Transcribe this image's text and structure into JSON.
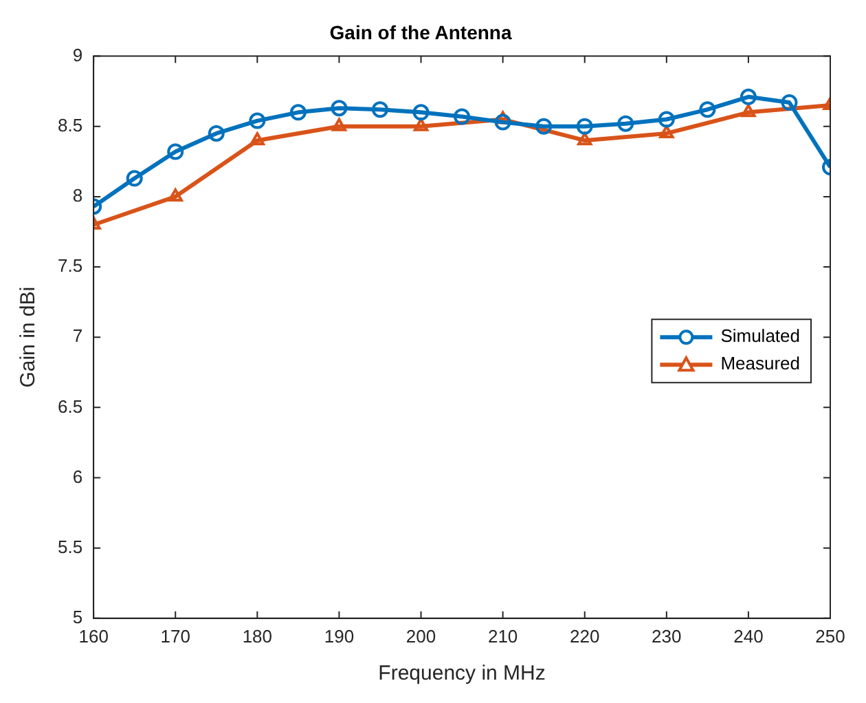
{
  "chart_data": {
    "type": "line",
    "title": "Gain of the Antenna",
    "xlabel": "Frequency in MHz",
    "ylabel": "Gain in dBi",
    "xlim": [
      160,
      250
    ],
    "xticks": [
      160,
      170,
      180,
      190,
      200,
      210,
      220,
      230,
      240,
      250
    ],
    "ylim": [
      5,
      9
    ],
    "yticks": [
      5,
      5.5,
      6,
      6.5,
      7,
      7.5,
      8,
      8.5,
      9
    ],
    "grid": false,
    "legend": "right",
    "line_style": "solid",
    "series": [
      {
        "name": "Simulated",
        "color": "#0072bd",
        "marker": "circle",
        "x": [
          160,
          165,
          170,
          175,
          180,
          185,
          190,
          195,
          200,
          205,
          210,
          215,
          220,
          225,
          230,
          235,
          240,
          245,
          250
        ],
        "values": [
          7.93,
          8.13,
          8.32,
          8.45,
          8.54,
          8.6,
          8.63,
          8.62,
          8.6,
          8.57,
          8.53,
          8.5,
          8.5,
          8.52,
          8.55,
          8.62,
          8.71,
          8.67,
          8.21
        ]
      },
      {
        "name": "Measured",
        "color": "#d95319",
        "marker": "triangle",
        "x": [
          160,
          170,
          180,
          190,
          200,
          210,
          220,
          230,
          240,
          250
        ],
        "values": [
          7.8,
          8.0,
          8.4,
          8.5,
          8.5,
          8.55,
          8.4,
          8.45,
          8.6,
          8.65
        ]
      }
    ]
  }
}
